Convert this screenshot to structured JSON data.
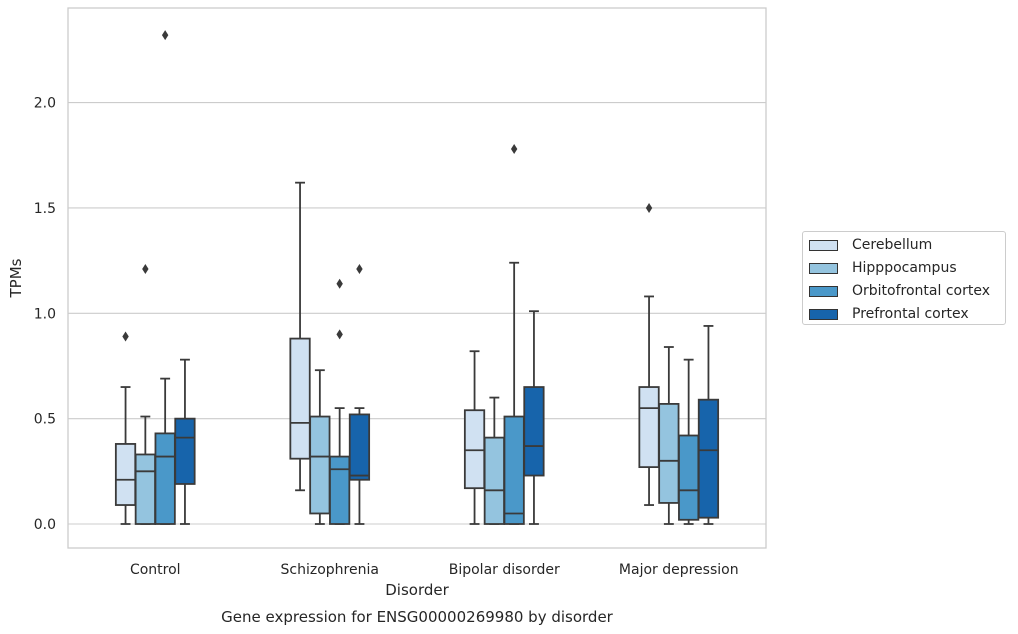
{
  "chart_data": {
    "type": "box",
    "xlabel": "Disorder",
    "ylabel": "TPMs",
    "caption": "Gene expression for ENSG00000269980 by disorder",
    "categories": [
      "Control",
      "Schizophrenia",
      "Bipolar disorder",
      "Major depression"
    ],
    "ylim": [
      -0.11,
      2.45
    ],
    "yticks": [
      0.0,
      0.5,
      1.0,
      1.5,
      2.0
    ],
    "ytick_labels": [
      "0.0",
      "0.5",
      "1.0",
      "1.5",
      "2.0"
    ],
    "grid": "horizontal",
    "legend_position": "right",
    "series": [
      {
        "name": "Cerebellum",
        "color": "#d0e1f2",
        "boxes": [
          {
            "whislo": 0.0,
            "q1": 0.09,
            "med": 0.21,
            "q3": 0.38,
            "whishi": 0.65,
            "fliers": [
              0.89
            ]
          },
          {
            "whislo": 0.16,
            "q1": 0.31,
            "med": 0.48,
            "q3": 0.88,
            "whishi": 1.62,
            "fliers": []
          },
          {
            "whislo": 0.0,
            "q1": 0.17,
            "med": 0.35,
            "q3": 0.54,
            "whishi": 0.82,
            "fliers": []
          },
          {
            "whislo": 0.09,
            "q1": 0.27,
            "med": 0.55,
            "q3": 0.65,
            "whishi": 1.08,
            "fliers": [
              1.5
            ]
          }
        ]
      },
      {
        "name": "Hipppocampus",
        "color": "#94c4df",
        "boxes": [
          {
            "whislo": 0.0,
            "q1": 0.0,
            "med": 0.25,
            "q3": 0.33,
            "whishi": 0.51,
            "fliers": [
              1.21
            ]
          },
          {
            "whislo": 0.0,
            "q1": 0.05,
            "med": 0.32,
            "q3": 0.51,
            "whishi": 0.73,
            "fliers": []
          },
          {
            "whislo": 0.0,
            "q1": 0.0,
            "med": 0.16,
            "q3": 0.41,
            "whishi": 0.6,
            "fliers": []
          },
          {
            "whislo": 0.0,
            "q1": 0.1,
            "med": 0.3,
            "q3": 0.57,
            "whishi": 0.84,
            "fliers": []
          }
        ]
      },
      {
        "name": "Orbitofrontal cortex",
        "color": "#4a98c9",
        "boxes": [
          {
            "whislo": 0.0,
            "q1": 0.0,
            "med": 0.32,
            "q3": 0.43,
            "whishi": 0.69,
            "fliers": [
              2.32
            ]
          },
          {
            "whislo": 0.0,
            "q1": 0.0,
            "med": 0.26,
            "q3": 0.32,
            "whishi": 0.55,
            "fliers": [
              0.9,
              1.14
            ]
          },
          {
            "whislo": 0.0,
            "q1": 0.0,
            "med": 0.05,
            "q3": 0.51,
            "whishi": 1.24,
            "fliers": [
              1.78
            ]
          },
          {
            "whislo": 0.0,
            "q1": 0.02,
            "med": 0.16,
            "q3": 0.42,
            "whishi": 0.78,
            "fliers": []
          }
        ]
      },
      {
        "name": "Prefrontal cortex",
        "color": "#1764ab",
        "boxes": [
          {
            "whislo": 0.0,
            "q1": 0.19,
            "med": 0.41,
            "q3": 0.5,
            "whishi": 0.78,
            "fliers": []
          },
          {
            "whislo": 0.0,
            "q1": 0.21,
            "med": 0.23,
            "q3": 0.52,
            "whishi": 0.55,
            "fliers": [
              1.21
            ]
          },
          {
            "whislo": 0.0,
            "q1": 0.23,
            "med": 0.37,
            "q3": 0.65,
            "whishi": 1.01,
            "fliers": []
          },
          {
            "whislo": 0.0,
            "q1": 0.03,
            "med": 0.35,
            "q3": 0.59,
            "whishi": 0.94,
            "fliers": []
          }
        ]
      }
    ]
  }
}
